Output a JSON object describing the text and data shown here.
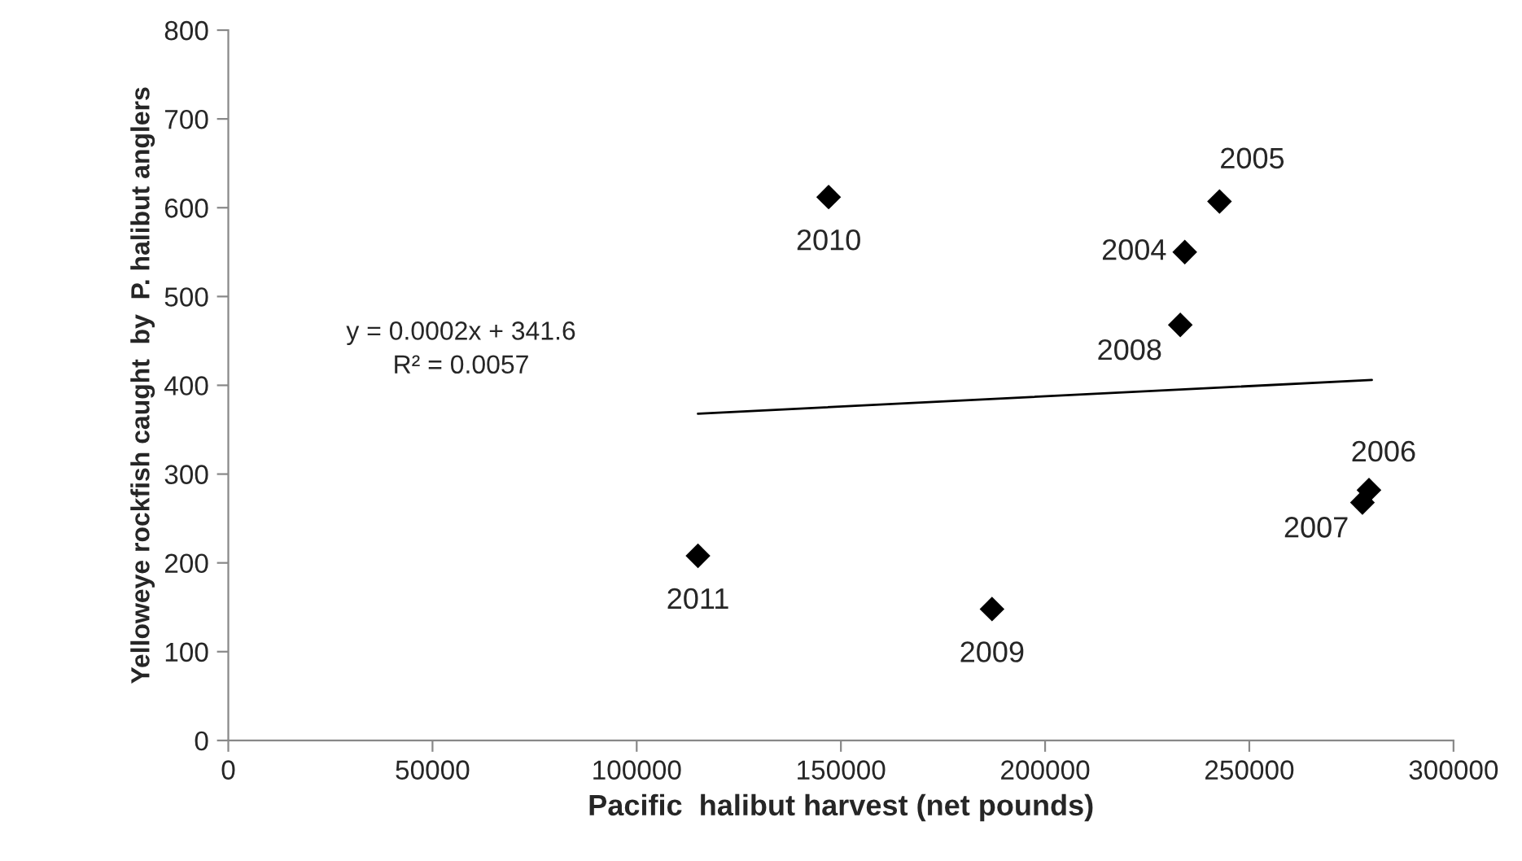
{
  "chart_data": {
    "type": "scatter",
    "xlabel": "Pacific  halibut harvest (net pounds)",
    "ylabel": "Yelloweye rockfish caught  by  P. halibut anglers",
    "xlim": [
      0,
      300000
    ],
    "xticks": [
      0,
      50000,
      100000,
      150000,
      200000,
      250000,
      300000
    ],
    "ylim": [
      0,
      800
    ],
    "yticks": [
      0,
      100,
      200,
      300,
      400,
      500,
      600,
      700,
      800
    ],
    "grid": false,
    "legend": false,
    "series": [
      {
        "marker": "diamond",
        "color": "#000000",
        "x": [
          234200,
          242700,
          279300,
          277700,
          233100,
          187000,
          147000,
          115000
        ],
        "values": [
          550,
          607,
          282,
          268,
          468,
          148,
          612,
          208
        ]
      },
      {
        "type": "line",
        "color": "#000000",
        "line_style": "solid",
        "x": [
          115000,
          280000
        ],
        "values": [
          368,
          406
        ]
      }
    ],
    "annotations": [
      {
        "text": "2004",
        "x": 234200,
        "y": 550
      },
      {
        "text": "2005",
        "x": 242700,
        "y": 607
      },
      {
        "text": "2006",
        "x": 279300,
        "y": 282
      },
      {
        "text": "2007",
        "x": 277700,
        "y": 268
      },
      {
        "text": "2008",
        "x": 233100,
        "y": 468
      },
      {
        "text": "2009",
        "x": 187000,
        "y": 148
      },
      {
        "text": "2010",
        "x": 147000,
        "y": 612
      },
      {
        "text": "2011",
        "x": 115000,
        "y": 208
      },
      "y = 0.0002x + 341.6\nR² = 0.0057"
    ]
  }
}
